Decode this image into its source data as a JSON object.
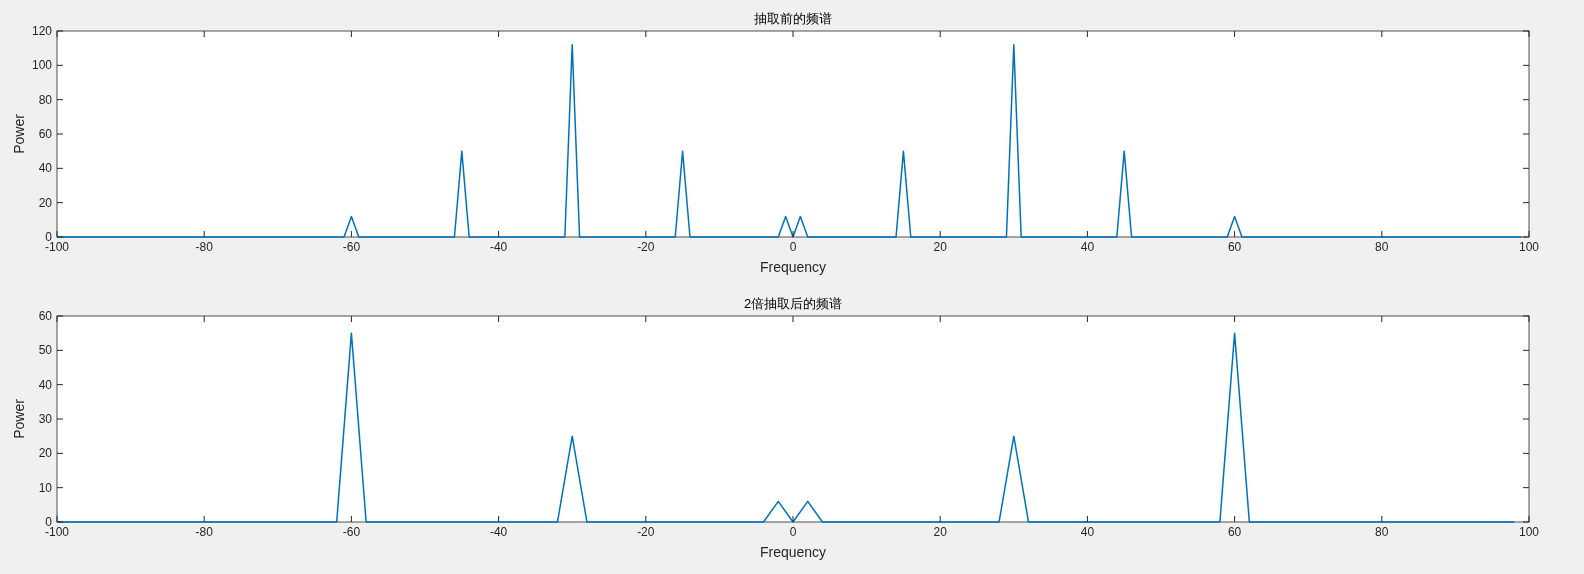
{
  "chart_data": [
    {
      "type": "line",
      "title": "抽取前的频谱",
      "xlabel": "Frequency",
      "ylabel": "Power",
      "color": "#0072bd",
      "xlim": [
        -100,
        100
      ],
      "ylim": [
        0,
        120
      ],
      "xticks": [
        -100,
        -80,
        -60,
        -40,
        -20,
        0,
        20,
        40,
        60,
        80,
        100
      ],
      "yticks": [
        0,
        20,
        40,
        60,
        80,
        100,
        120
      ],
      "x": [
        -100,
        -61,
        -60,
        -59,
        -46,
        -45,
        -44,
        -31,
        -30,
        -29,
        -16,
        -15,
        -14,
        -2,
        -1,
        0,
        1,
        2,
        14,
        15,
        16,
        29,
        30,
        31,
        44,
        45,
        46,
        59,
        60,
        61,
        99
      ],
      "values": [
        0,
        0,
        12,
        0,
        0,
        50,
        0,
        0,
        112,
        0,
        0,
        50,
        0,
        0,
        12,
        0,
        12,
        0,
        0,
        50,
        0,
        0,
        112,
        0,
        0,
        50,
        0,
        0,
        12,
        0,
        0
      ]
    },
    {
      "type": "line",
      "title": "2倍抽取后的频谱",
      "xlabel": "Frequency",
      "ylabel": "Power",
      "color": "#0072bd",
      "xlim": [
        -100,
        100
      ],
      "ylim": [
        0,
        60
      ],
      "xticks": [
        -100,
        -80,
        -60,
        -40,
        -20,
        0,
        20,
        40,
        60,
        80,
        100
      ],
      "yticks": [
        0,
        10,
        20,
        30,
        40,
        50,
        60
      ],
      "x": [
        -100,
        -62,
        -60,
        -58,
        -32,
        -30,
        -28,
        -4,
        -2,
        0,
        2,
        4,
        28,
        30,
        32,
        58,
        60,
        62,
        98
      ],
      "values": [
        0,
        0,
        55,
        0,
        0,
        25,
        0,
        0,
        6,
        0,
        6,
        0,
        0,
        25,
        0,
        0,
        55,
        0,
        0
      ]
    }
  ]
}
